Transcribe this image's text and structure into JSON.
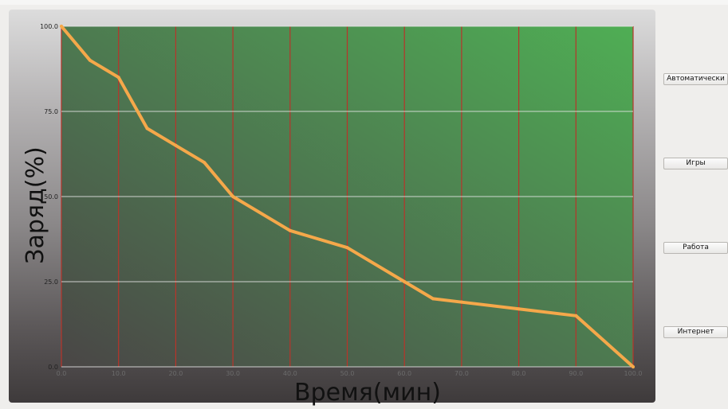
{
  "buttons": {
    "auto": "Автоматически",
    "games": "Игры",
    "work": "Работа",
    "internet": "Интернет"
  },
  "chart_data": {
    "type": "line",
    "xlabel": "Время(мин)",
    "ylabel": "Заряд(%)",
    "xlim": [
      0,
      100
    ],
    "ylim": [
      0,
      100
    ],
    "x_ticks": [
      "0.0",
      "10.0",
      "20.0",
      "30.0",
      "40.0",
      "50.0",
      "60.0",
      "70.0",
      "80.0",
      "90.0",
      "100.0"
    ],
    "y_ticks": [
      "0.0",
      "25.0",
      "50.0",
      "75.0",
      "100.0"
    ],
    "grid": true,
    "series": [
      {
        "x": [
          0,
          5,
          10,
          15,
          20,
          25,
          30,
          40,
          50,
          60,
          65,
          70,
          80,
          90,
          100
        ],
        "y": [
          100,
          90,
          85,
          70,
          65,
          60,
          50,
          40,
          35,
          25,
          20,
          19,
          17,
          15,
          0
        ]
      }
    ],
    "colors": {
      "line": "#f5a84a",
      "vgrid": "#b8342a",
      "hgrid": "#e6e6e6",
      "plot_top_right": "#4fae54",
      "plot_bottom_left": "#4a4646"
    }
  }
}
